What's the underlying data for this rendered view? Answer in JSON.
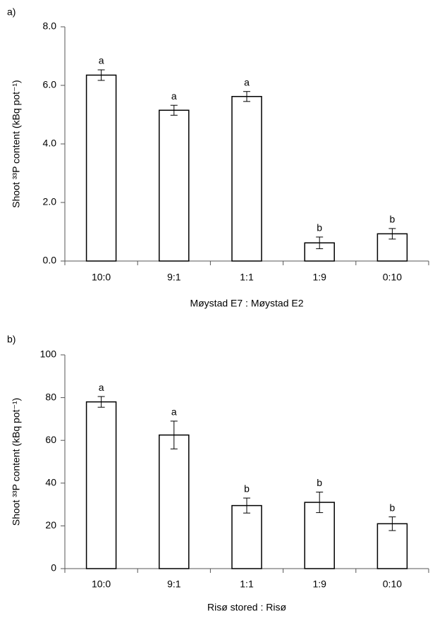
{
  "chart_data": [
    {
      "type": "bar",
      "panel_label": "a)",
      "x_label": "Møystad E7 : Møystad E2",
      "y_label": "Shoot ³³P content (kBq pot⁻¹)",
      "categories": [
        "10:0",
        "9:1",
        "1:1",
        "1:9",
        "0:10"
      ],
      "values": [
        6.35,
        5.15,
        5.62,
        0.62,
        0.93
      ],
      "errors": [
        0.18,
        0.17,
        0.17,
        0.2,
        0.18
      ],
      "annotations": [
        "a",
        "a",
        "a",
        "b",
        "b"
      ],
      "color": "#ffffff",
      "ylim": [
        0,
        8
      ],
      "yticks": [
        {
          "value": 0,
          "label": "0.0"
        },
        {
          "value": 2,
          "label": "2.0"
        },
        {
          "value": 4,
          "label": "4.0"
        },
        {
          "value": 6,
          "label": "6.0"
        },
        {
          "value": 8,
          "label": "8.0"
        }
      ]
    },
    {
      "type": "bar",
      "panel_label": "b)",
      "x_label": "Risø stored : Risø",
      "y_label": "Shoot ³³P content (kBq pot⁻¹)",
      "categories": [
        "10:0",
        "9:1",
        "1:1",
        "1:9",
        "0:10"
      ],
      "values": [
        78,
        62.5,
        29.5,
        31,
        21
      ],
      "errors": [
        2.5,
        6.5,
        3.5,
        4.8,
        3.2
      ],
      "annotations": [
        "a",
        "a",
        "b",
        "b",
        "b"
      ],
      "color": "#ffffff",
      "ylim": [
        0,
        100
      ],
      "yticks": [
        0,
        20,
        40,
        60,
        80,
        100
      ]
    }
  ]
}
